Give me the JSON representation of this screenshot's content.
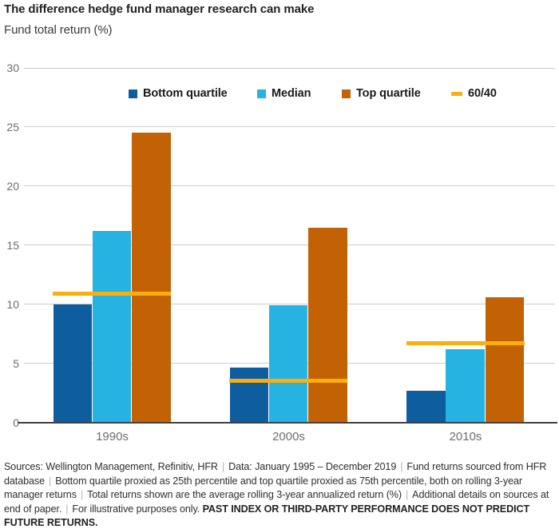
{
  "header": {
    "title": "The difference hedge fund manager research can make",
    "subtitle": "Fund total return (%)"
  },
  "chart_data": {
    "type": "bar",
    "categories": [
      "1990s",
      "2000s",
      "2010s"
    ],
    "series": [
      {
        "name": "Bottom quartile",
        "color": "#0d5d9f",
        "values": [
          10.0,
          4.6,
          2.7
        ]
      },
      {
        "name": "Median",
        "color": "#27b3e2",
        "values": [
          16.2,
          9.9,
          6.2
        ]
      },
      {
        "name": "Top quartile",
        "color": "#c36205",
        "values": [
          24.5,
          16.5,
          10.6
        ]
      }
    ],
    "overlay_line_series": {
      "name": "60/40",
      "color": "#fbae0c",
      "values": [
        10.9,
        3.5,
        6.7
      ]
    },
    "title": "The difference hedge fund manager research can make",
    "ylabel": "Fund total return (%)",
    "xlabel": "",
    "ylim": [
      0,
      30
    ],
    "yticks": [
      0,
      5,
      10,
      15,
      20,
      25,
      30
    ],
    "grid": "horizontal",
    "legend_position": "top-inside"
  },
  "legend": {
    "items": [
      {
        "label": "Bottom quartile",
        "marker": "square",
        "color": "#0d5d9f"
      },
      {
        "label": "Median",
        "marker": "square",
        "color": "#27b3e2"
      },
      {
        "label": "Top quartile",
        "marker": "square",
        "color": "#c36205"
      },
      {
        "label": "60/40",
        "marker": "dash",
        "color": "#fbae0c"
      }
    ]
  },
  "footnote": {
    "separator": "|",
    "segments": [
      "Sources: Wellington Management, Refinitiv, HFR",
      "Data: January 1995 – December 2019",
      "Fund returns sourced from HFR database",
      "Bottom quartile proxied as 25th percentile and top quartile proxied as 75th percentile, both on rolling 3-year manager returns",
      "Total returns shown are the average rolling 3-year annualized return (%)",
      "Additional details on sources at end of paper.",
      "For illustrative purposes only."
    ],
    "bold_tail": "PAST INDEX OR THIRD-PARTY PERFORMANCE DOES NOT PREDICT FUTURE RETURNS."
  },
  "colors": {
    "grid": "#cccccc",
    "axis": "#414042",
    "tick_text": "#6d6d6d",
    "title_text": "#231f20"
  }
}
